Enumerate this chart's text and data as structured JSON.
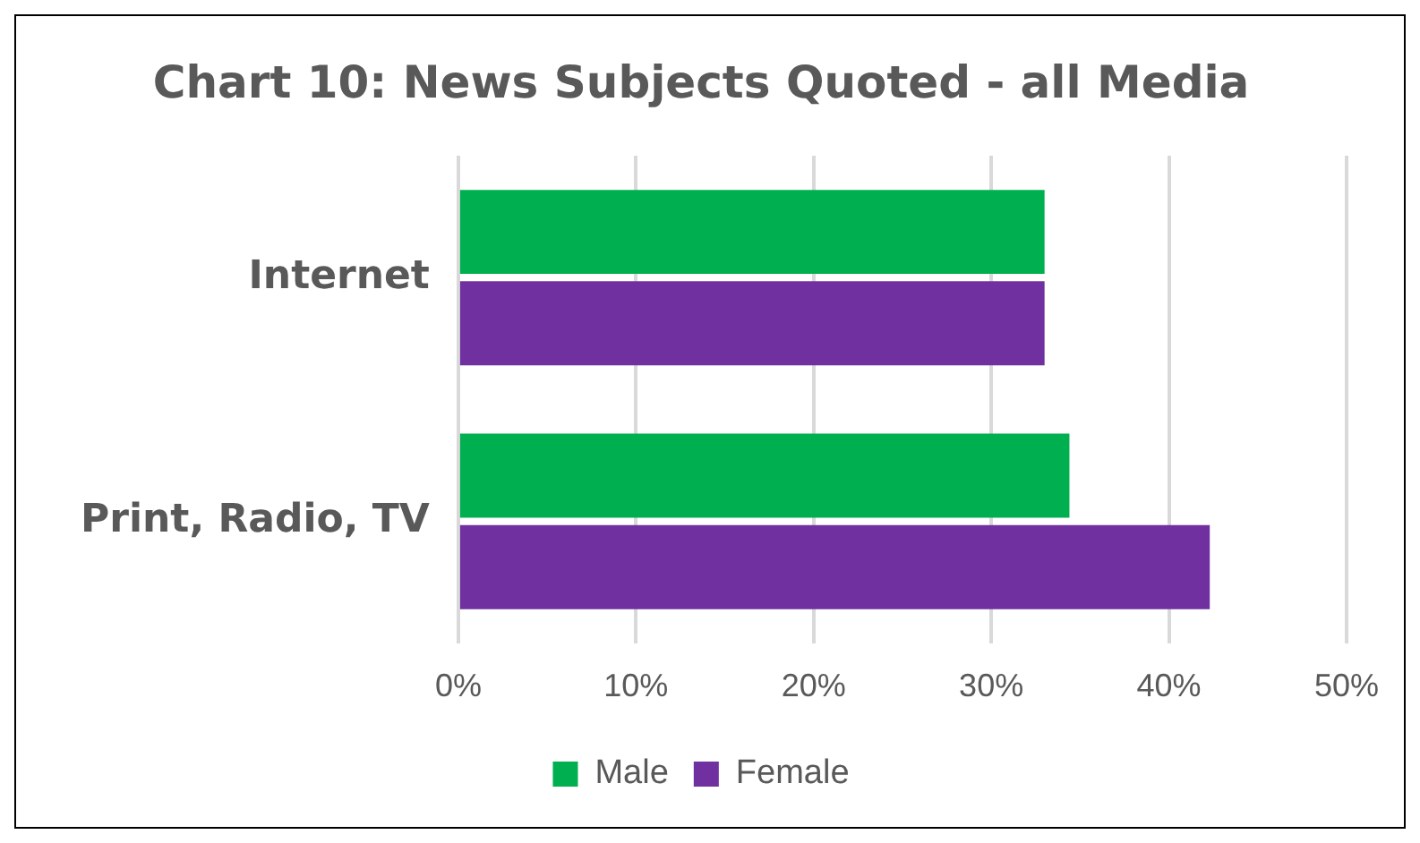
{
  "chart_data": {
    "type": "bar",
    "orientation": "horizontal",
    "title": "Chart 10: News Subjects Quoted - all Media",
    "categories": [
      "Internet",
      "Print, Radio, TV"
    ],
    "series": [
      {
        "name": "Male",
        "color": "#00b050",
        "values": [
          33.0,
          34.4
        ]
      },
      {
        "name": "Female",
        "color": "#7030a0",
        "values": [
          33.0,
          42.3
        ]
      }
    ],
    "xlim": [
      0,
      50
    ],
    "xticks": [
      {
        "value": 0,
        "label": "0%"
      },
      {
        "value": 10,
        "label": "10%"
      },
      {
        "value": 20,
        "label": "20%"
      },
      {
        "value": 30,
        "label": "30%"
      },
      {
        "value": 40,
        "label": "40%"
      },
      {
        "value": 50,
        "label": "50%"
      }
    ],
    "grid": "x",
    "legend": "bottom"
  }
}
